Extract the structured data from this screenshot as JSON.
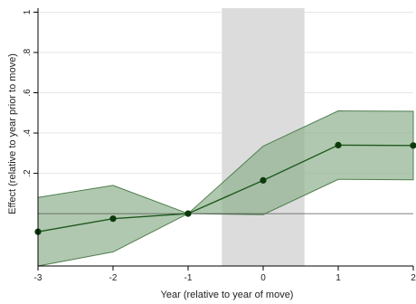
{
  "chart_data": {
    "type": "line",
    "title": "",
    "xlabel": "Year (relative to year of move)",
    "ylabel": "Effect (relative to year prior to move)",
    "x": [
      -3,
      -2,
      -1,
      0,
      1,
      2
    ],
    "xlim": [
      -3,
      2
    ],
    "ylim": [
      -0.26,
      1.02
    ],
    "x_ticks": [
      "-3",
      "-2",
      "-1",
      "0",
      "1",
      "2"
    ],
    "y_ticks": [
      {
        "value": 0.2,
        "label": ".2"
      },
      {
        "value": 0.4,
        "label": ".4"
      },
      {
        "value": 0.6,
        "label": ".6"
      },
      {
        "value": 0.8,
        "label": ".8"
      },
      {
        "value": 1.0,
        "label": "1"
      }
    ],
    "series": [
      {
        "values": [
          -0.09,
          -0.025,
          0.0,
          0.165,
          0.34,
          0.338
        ],
        "ci_lower": [
          -0.26,
          -0.19,
          0.0,
          -0.005,
          0.17,
          0.168
        ],
        "ci_upper": [
          0.08,
          0.14,
          0.0,
          0.335,
          0.51,
          0.508
        ]
      }
    ],
    "reference_line_y": 0,
    "shaded_region_x": [
      -0.55,
      0.55
    ],
    "grid": true,
    "colors": {
      "line": "#1e5a1e",
      "marker": "#0c3a0c",
      "band_fill": "#92b390",
      "band_stroke": "#4f7e4f",
      "shade": "#dcdcdc",
      "grid": "#e6e6e6",
      "refline": "#555555"
    }
  }
}
